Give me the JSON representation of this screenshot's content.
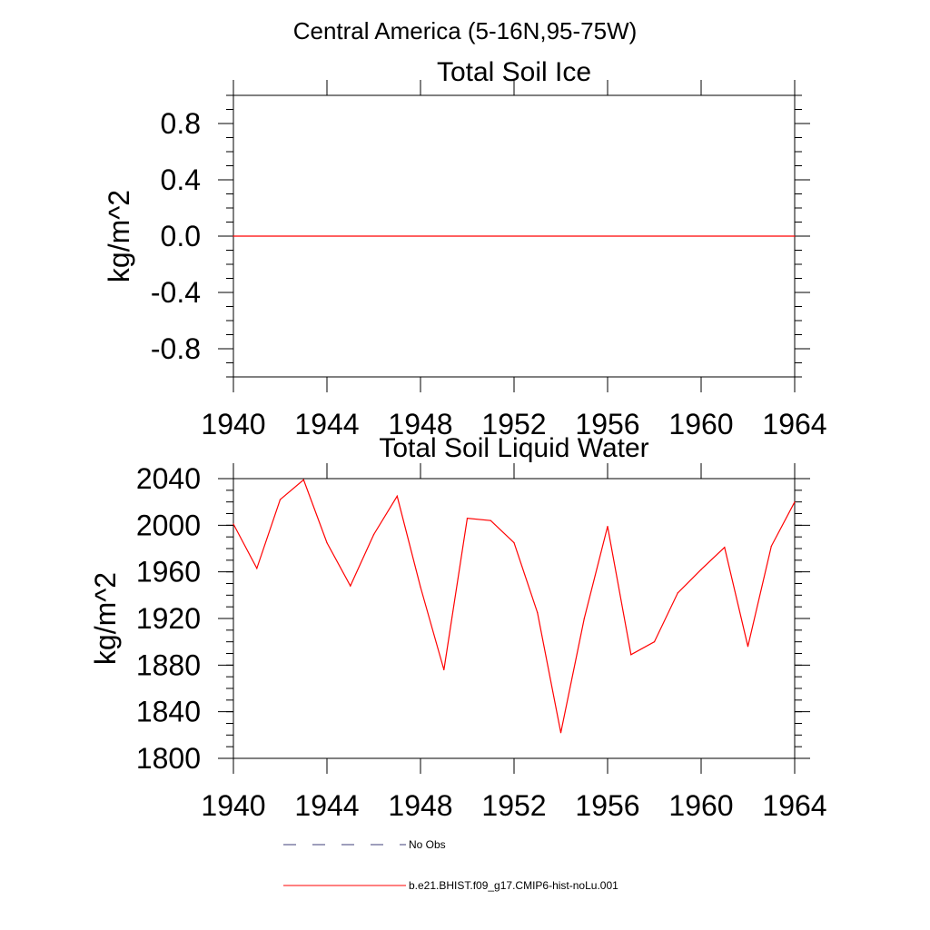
{
  "header": {
    "title": "Central America (5-16N,95-75W)"
  },
  "chart_data": [
    {
      "type": "line",
      "title": "Total Soil Ice",
      "ylabel": "kg/m^2",
      "xlabel": "",
      "xlim": [
        1940,
        1964
      ],
      "ylim": [
        -1.0,
        1.0
      ],
      "x_ticks": [
        "1940",
        "1944",
        "1948",
        "1952",
        "1956",
        "1960",
        "1964"
      ],
      "y_ticks": [
        "0.8",
        "0.4",
        "0.0",
        "-0.4",
        "-0.8"
      ],
      "series": [
        {
          "color": "#ff0000",
          "x": [
            1940,
            1964
          ],
          "y": [
            0.0,
            0.0
          ]
        }
      ]
    },
    {
      "type": "line",
      "title": "Total Soil Liquid Water",
      "ylabel": "kg/m^2",
      "xlabel": "",
      "xlim": [
        1940,
        1964
      ],
      "ylim": [
        1800,
        2040
      ],
      "x_ticks": [
        "1940",
        "1944",
        "1948",
        "1952",
        "1956",
        "1960",
        "1964"
      ],
      "y_ticks": [
        "2040",
        "2000",
        "1960",
        "1920",
        "1880",
        "1840",
        "1800"
      ],
      "series": [
        {
          "color": "#ff0000",
          "x": [
            1940,
            1941,
            1942,
            1943,
            1944,
            1945,
            1946,
            1947,
            1948,
            1949,
            1950,
            1951,
            1952,
            1953,
            1954,
            1955,
            1956,
            1957,
            1958,
            1959,
            1960,
            1961,
            1962,
            1963,
            1964
          ],
          "y": [
            2001,
            1963,
            2022,
            2039,
            1985,
            1948,
            1992,
            2025,
            1947,
            1876,
            2006,
            2004,
            1985,
            1925,
            1822,
            1920,
            1999,
            1889,
            1900,
            1942,
            1962,
            1981,
            1896,
            1982,
            2020
          ]
        }
      ]
    }
  ],
  "legend": {
    "items": [
      {
        "label": "No Obs",
        "color": "#3c3c78",
        "style": "dashed"
      },
      {
        "label": "b.e21.BHIST.f09_g17.CMIP6-hist-noLu.001",
        "color": "#ff0000",
        "style": "solid"
      }
    ]
  }
}
